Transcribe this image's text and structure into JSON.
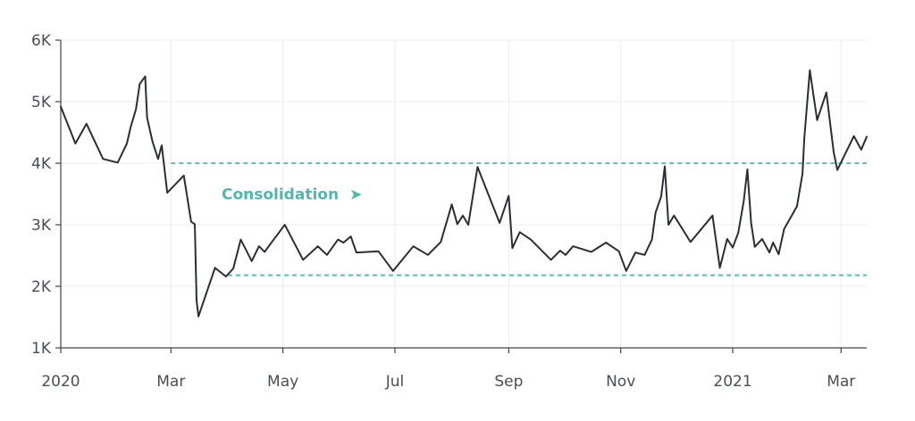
{
  "chart_data": {
    "type": "line",
    "title": "",
    "xlabel": "",
    "ylabel": "",
    "ylim": [
      1000,
      6000
    ],
    "y_ticks": [
      {
        "value": 1000,
        "label": "1K"
      },
      {
        "value": 2000,
        "label": "2K"
      },
      {
        "value": 3000,
        "label": "3K"
      },
      {
        "value": 4000,
        "label": "4K"
      },
      {
        "value": 5000,
        "label": "5K"
      },
      {
        "value": 6000,
        "label": "6K"
      }
    ],
    "xlim": [
      "2020-01-01",
      "2021-03-15"
    ],
    "x_ticks": [
      {
        "value": "2020-01-01",
        "label": "2020"
      },
      {
        "value": "2020-03-01",
        "label": "Mar"
      },
      {
        "value": "2020-05-01",
        "label": "May"
      },
      {
        "value": "2020-07-01",
        "label": "Jul"
      },
      {
        "value": "2020-09-01",
        "label": "Sep"
      },
      {
        "value": "2020-11-01",
        "label": "Nov"
      },
      {
        "value": "2021-01-01",
        "label": "2021"
      },
      {
        "value": "2021-03-01",
        "label": "Mar"
      }
    ],
    "grid": true,
    "line_color": "#2b2f33",
    "annotation_color": "#4fb8ad",
    "reference_lines": [
      {
        "y": 4000,
        "x_start": "2020-03-01",
        "x_end": "2021-03-15"
      },
      {
        "y": 2180,
        "x_start": "2020-04-01",
        "x_end": "2021-03-15"
      }
    ],
    "annotation": {
      "text": "Consolidation",
      "arrow": "➤",
      "x": "2020-04-01",
      "y": 3500
    },
    "series": [
      {
        "points": [
          [
            "2020-01-01",
            4920
          ],
          [
            "2020-01-09",
            4320
          ],
          [
            "2020-01-15",
            4640
          ],
          [
            "2020-01-24",
            4070
          ],
          [
            "2020-02-01",
            4010
          ],
          [
            "2020-02-06",
            4320
          ],
          [
            "2020-02-08",
            4580
          ],
          [
            "2020-02-11",
            4880
          ],
          [
            "2020-02-13",
            5290
          ],
          [
            "2020-02-16",
            5410
          ],
          [
            "2020-02-17",
            4740
          ],
          [
            "2020-02-20",
            4350
          ],
          [
            "2020-02-23",
            4070
          ],
          [
            "2020-02-25",
            4290
          ],
          [
            "2020-02-28",
            3520
          ],
          [
            "2020-03-08",
            3800
          ],
          [
            "2020-03-12",
            3050
          ],
          [
            "2020-03-14",
            3010
          ],
          [
            "2020-03-15",
            1770
          ],
          [
            "2020-03-16",
            1510
          ],
          [
            "2020-03-25",
            2300
          ],
          [
            "2020-03-31",
            2160
          ],
          [
            "2020-04-04",
            2290
          ],
          [
            "2020-04-08",
            2760
          ],
          [
            "2020-04-14",
            2410
          ],
          [
            "2020-04-18",
            2650
          ],
          [
            "2020-04-21",
            2560
          ],
          [
            "2020-04-25",
            2720
          ],
          [
            "2020-05-02",
            3000
          ],
          [
            "2020-05-12",
            2430
          ],
          [
            "2020-05-20",
            2650
          ],
          [
            "2020-05-25",
            2510
          ],
          [
            "2020-05-31",
            2760
          ],
          [
            "2020-06-03",
            2710
          ],
          [
            "2020-06-07",
            2810
          ],
          [
            "2020-06-10",
            2550
          ],
          [
            "2020-06-22",
            2570
          ],
          [
            "2020-06-30",
            2250
          ],
          [
            "2020-07-11",
            2650
          ],
          [
            "2020-07-19",
            2510
          ],
          [
            "2020-07-26",
            2720
          ],
          [
            "2020-08-01",
            3330
          ],
          [
            "2020-08-04",
            3010
          ],
          [
            "2020-08-07",
            3150
          ],
          [
            "2020-08-10",
            3000
          ],
          [
            "2020-08-15",
            3940
          ],
          [
            "2020-08-27",
            3030
          ],
          [
            "2020-09-01",
            3470
          ],
          [
            "2020-09-03",
            2620
          ],
          [
            "2020-09-07",
            2880
          ],
          [
            "2020-09-13",
            2760
          ],
          [
            "2020-09-24",
            2430
          ],
          [
            "2020-09-29",
            2580
          ],
          [
            "2020-10-02",
            2510
          ],
          [
            "2020-10-06",
            2650
          ],
          [
            "2020-10-16",
            2560
          ],
          [
            "2020-10-24",
            2710
          ],
          [
            "2020-10-31",
            2570
          ],
          [
            "2020-11-04",
            2250
          ],
          [
            "2020-11-09",
            2550
          ],
          [
            "2020-11-14",
            2510
          ],
          [
            "2020-11-18",
            2760
          ],
          [
            "2020-11-20",
            3200
          ],
          [
            "2020-11-23",
            3460
          ],
          [
            "2020-11-25",
            3950
          ],
          [
            "2020-11-27",
            3000
          ],
          [
            "2020-11-30",
            3150
          ],
          [
            "2020-12-09",
            2720
          ],
          [
            "2020-12-21",
            3150
          ],
          [
            "2020-12-25",
            2300
          ],
          [
            "2020-12-29",
            2770
          ],
          [
            "2021-01-01",
            2630
          ],
          [
            "2021-01-04",
            2870
          ],
          [
            "2021-01-07",
            3380
          ],
          [
            "2021-01-09",
            3900
          ],
          [
            "2021-01-11",
            3030
          ],
          [
            "2021-01-13",
            2640
          ],
          [
            "2021-01-17",
            2770
          ],
          [
            "2021-01-21",
            2550
          ],
          [
            "2021-01-23",
            2710
          ],
          [
            "2021-01-26",
            2520
          ],
          [
            "2021-01-29",
            2930
          ],
          [
            "2021-02-05",
            3300
          ],
          [
            "2021-02-08",
            3830
          ],
          [
            "2021-02-09",
            4400
          ],
          [
            "2021-02-12",
            5510
          ],
          [
            "2021-02-16",
            4700
          ],
          [
            "2021-02-21",
            5150
          ],
          [
            "2021-02-25",
            4180
          ],
          [
            "2021-02-27",
            3890
          ],
          [
            "2021-03-08",
            4440
          ],
          [
            "2021-03-12",
            4220
          ],
          [
            "2021-03-15",
            4430
          ]
        ]
      }
    ]
  }
}
